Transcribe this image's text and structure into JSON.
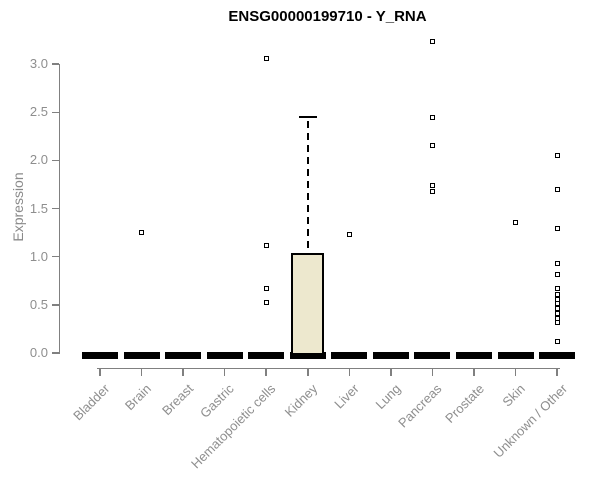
{
  "title": "ENSG00000199710 - Y_RNA",
  "chart_data": {
    "type": "boxplot",
    "title": "ENSG00000199710 - Y_RNA",
    "xlabel": "",
    "ylabel": "Expression",
    "ylim": [
      0,
      3.25
    ],
    "yticks": [
      0.0,
      0.5,
      1.0,
      1.5,
      2.0,
      2.5,
      3.0
    ],
    "grid": false,
    "legend": null,
    "categories": [
      "Bladder",
      "Brain",
      "Breast",
      "Gastric",
      "Hematopoietic cells",
      "Kidney",
      "Liver",
      "Lung",
      "Pancreas",
      "Prostate",
      "Skin",
      "Unknown / Other"
    ],
    "boxes": [
      {
        "category": "Bladder",
        "low": 0,
        "q1": 0,
        "median": 0,
        "q3": 0,
        "high": 0,
        "outliers": []
      },
      {
        "category": "Brain",
        "low": 0,
        "q1": 0,
        "median": 0,
        "q3": 0,
        "high": 0,
        "outliers": [
          1.25
        ]
      },
      {
        "category": "Breast",
        "low": 0,
        "q1": 0,
        "median": 0,
        "q3": 0,
        "high": 0,
        "outliers": []
      },
      {
        "category": "Gastric",
        "low": 0,
        "q1": 0,
        "median": 0,
        "q3": 0,
        "high": 0,
        "outliers": []
      },
      {
        "category": "Hematopoietic cells",
        "low": 0,
        "q1": 0,
        "median": 0,
        "q3": 0,
        "high": 0,
        "outliers": [
          3.06,
          1.12,
          0.67,
          0.52
        ]
      },
      {
        "category": "Kidney",
        "low": 0,
        "q1": 0,
        "median": 0,
        "q3": 1.04,
        "high": 2.45,
        "outliers": []
      },
      {
        "category": "Liver",
        "low": 0,
        "q1": 0,
        "median": 0,
        "q3": 0,
        "high": 0,
        "outliers": [
          1.23
        ]
      },
      {
        "category": "Lung",
        "low": 0,
        "q1": 0,
        "median": 0,
        "q3": 0,
        "high": 0,
        "outliers": []
      },
      {
        "category": "Pancreas",
        "low": 0,
        "q1": 0,
        "median": 0,
        "q3": 0,
        "high": 0,
        "outliers": [
          3.23,
          2.45,
          2.15,
          1.74,
          1.68
        ]
      },
      {
        "category": "Prostate",
        "low": 0,
        "q1": 0,
        "median": 0,
        "q3": 0,
        "high": 0,
        "outliers": []
      },
      {
        "category": "Skin",
        "low": 0,
        "q1": 0,
        "median": 0,
        "q3": 0,
        "high": 0,
        "outliers": [
          1.36
        ]
      },
      {
        "category": "Unknown / Other",
        "low": 0,
        "q1": 0,
        "median": 0,
        "q3": 0,
        "high": 0,
        "outliers": [
          2.05,
          1.7,
          1.29,
          0.93,
          0.81,
          0.67,
          0.61,
          0.56,
          0.51,
          0.46,
          0.41,
          0.36,
          0.32,
          0.12
        ]
      }
    ],
    "colors": {
      "background": "#ffffff",
      "box_fill": "#ede8ce",
      "box_border": "#000000",
      "axis": "#808080",
      "tick_label": "#8e8e8e",
      "title": "#000000",
      "point": "#000000"
    }
  }
}
